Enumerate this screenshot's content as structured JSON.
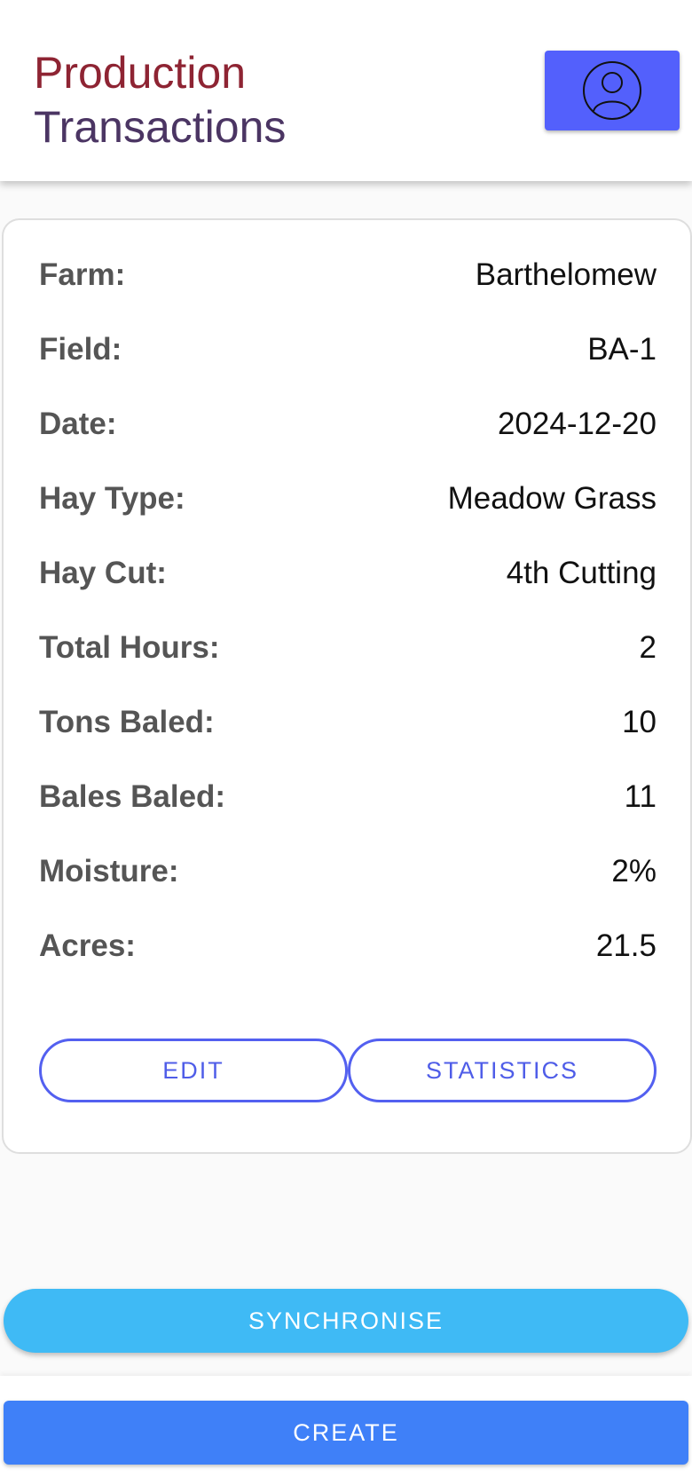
{
  "header": {
    "title_line1": "Production",
    "title_line2": "Transactions",
    "profile_icon": "user-circle-icon"
  },
  "details": {
    "rows": [
      {
        "label": "Farm:",
        "value": "Barthelomew"
      },
      {
        "label": "Field:",
        "value": "BA-1"
      },
      {
        "label": "Date:",
        "value": "2024-12-20"
      },
      {
        "label": "Hay Type:",
        "value": "Meadow Grass"
      },
      {
        "label": "Hay Cut:",
        "value": "4th Cutting"
      },
      {
        "label": "Total Hours:",
        "value": "2"
      },
      {
        "label": "Tons Baled:",
        "value": "10"
      },
      {
        "label": "Bales Baled:",
        "value": "11"
      },
      {
        "label": "Moisture:",
        "value": "2%"
      },
      {
        "label": "Acres:",
        "value": "21.5"
      }
    ],
    "edit_label": "EDIT",
    "statistics_label": "STATISTICS"
  },
  "actions": {
    "synchronise_label": "SYNCHRONISE",
    "create_label": "CREATE"
  },
  "colors": {
    "title_line1": "#8e2433",
    "title_line2": "#4b3563",
    "profile_button": "#5360fc",
    "outline_accent": "#5360f0",
    "synchronise": "#3fbaf5",
    "create": "#3f80f8"
  }
}
